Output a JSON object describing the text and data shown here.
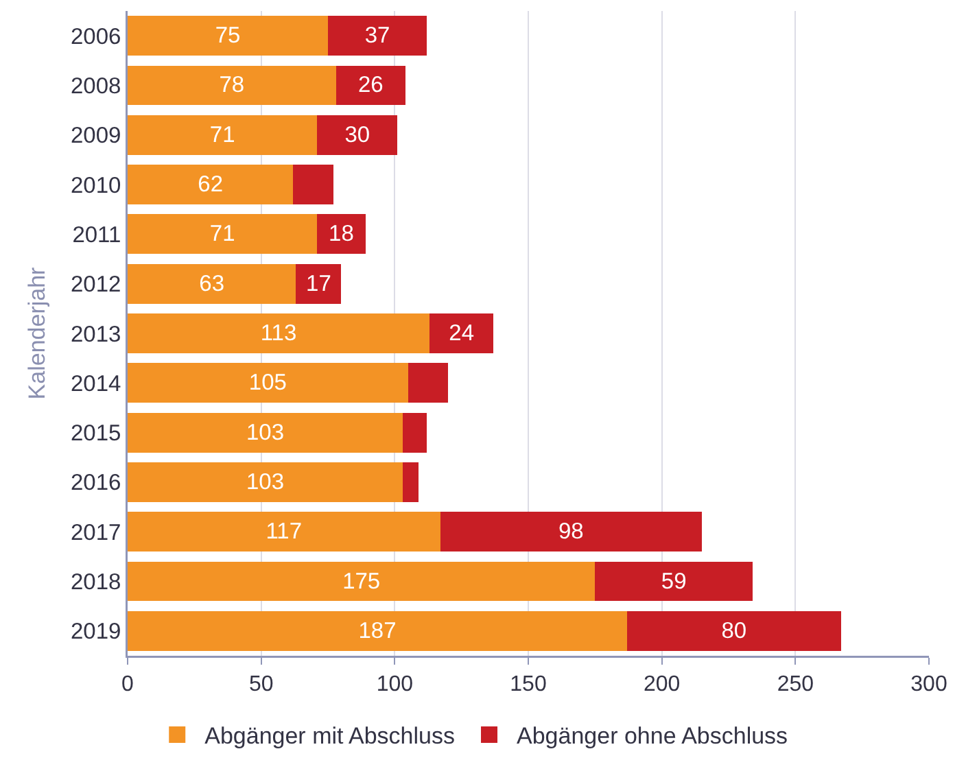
{
  "chart_data": {
    "type": "bar",
    "orientation": "horizontal",
    "stacked": true,
    "ylabel": "Kalenderjahr",
    "categories": [
      "2006",
      "2008",
      "2009",
      "2010",
      "2011",
      "2012",
      "2013",
      "2014",
      "2015",
      "2016",
      "2017",
      "2018",
      "2019"
    ],
    "series": [
      {
        "name": "Abgänger mit Abschluss",
        "color": "#f39325",
        "values": [
          75,
          78,
          71,
          62,
          71,
          63,
          113,
          105,
          103,
          103,
          117,
          175,
          187
        ],
        "value_labels": [
          "75",
          "78",
          "71",
          "62",
          "71",
          "63",
          "113",
          "105",
          "103",
          "103",
          "117",
          "175",
          "187"
        ]
      },
      {
        "name": "Abgänger ohne Abschluss",
        "color": "#c81e25",
        "values": [
          37,
          26,
          30,
          15,
          18,
          17,
          24,
          15,
          9,
          6,
          98,
          59,
          80
        ],
        "value_labels": [
          "37",
          "26",
          "30",
          null,
          "18",
          "17",
          "24",
          null,
          null,
          null,
          "98",
          "59",
          "80"
        ]
      }
    ],
    "xlim": [
      0,
      300
    ],
    "xticks": [
      0,
      50,
      100,
      150,
      200,
      250,
      300
    ],
    "grid": "x",
    "legend": "bottom"
  }
}
